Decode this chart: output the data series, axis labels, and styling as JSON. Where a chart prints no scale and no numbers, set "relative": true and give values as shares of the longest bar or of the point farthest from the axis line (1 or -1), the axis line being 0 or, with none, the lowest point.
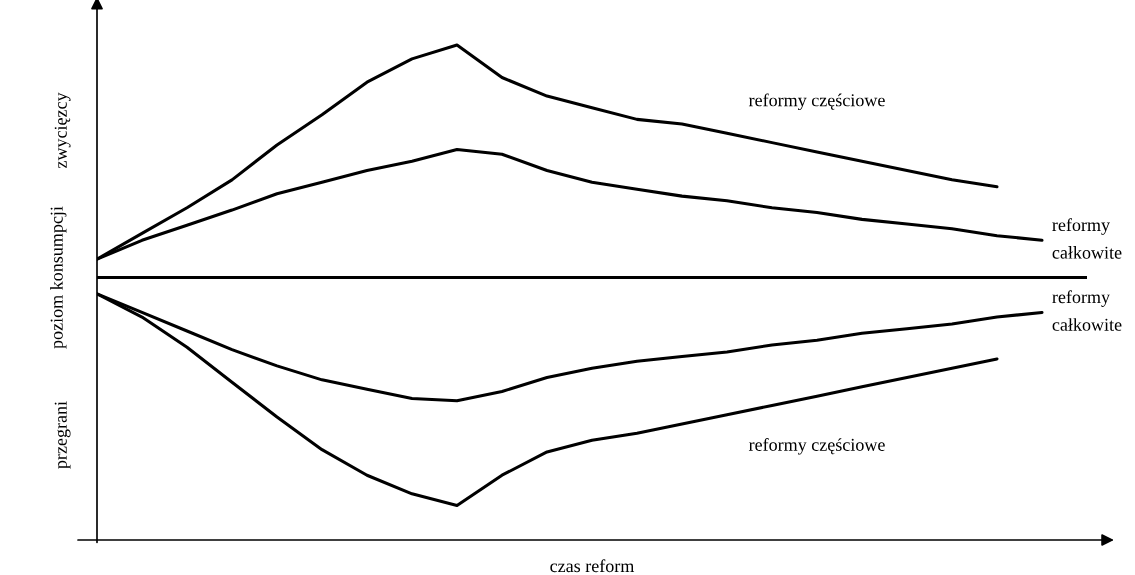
{
  "chart_data": {
    "type": "line",
    "relative": true,
    "xlabel": "czas reform",
    "ylabel": "poziom konsumpcji",
    "categories": [
      null,
      null,
      null,
      null,
      null,
      null,
      null,
      null,
      null,
      null,
      null,
      null,
      null,
      null,
      null,
      null,
      null,
      null,
      null,
      null,
      null,
      null
    ],
    "series": [
      {
        "name": "reformy częściowe",
        "color": "#000000",
        "values": [
          0.079,
          0.19,
          0.3,
          0.42,
          0.57,
          0.7,
          0.84,
          0.94,
          1.0,
          0.86,
          0.78,
          0.73,
          0.68,
          0.66,
          0.62,
          0.58,
          0.54,
          0.5,
          0.46,
          0.42,
          0.39,
          null
        ]
      },
      {
        "name": "reformy całkowite",
        "color": "#000000",
        "values": [
          0.079,
          0.16,
          0.225,
          0.29,
          0.36,
          0.41,
          0.46,
          0.5,
          0.55,
          0.53,
          0.46,
          0.41,
          0.38,
          0.35,
          0.33,
          0.3,
          0.28,
          0.25,
          0.23,
          0.21,
          0.18,
          0.16
        ]
      },
      {
        "name": "reformy całkowite",
        "color": "#000000",
        "values": [
          -0.07,
          -0.15,
          -0.23,
          -0.31,
          -0.38,
          -0.44,
          -0.48,
          -0.52,
          -0.53,
          -0.49,
          -0.43,
          -0.39,
          -0.36,
          -0.34,
          -0.32,
          -0.29,
          -0.27,
          -0.24,
          -0.22,
          -0.2,
          -0.17,
          -0.15
        ]
      },
      {
        "name": "reformy częściowe",
        "color": "#000000",
        "values": [
          -0.07,
          -0.17,
          -0.3,
          -0.45,
          -0.6,
          -0.74,
          -0.85,
          -0.93,
          -0.98,
          -0.85,
          -0.75,
          -0.7,
          -0.67,
          -0.63,
          -0.59,
          -0.55,
          -0.51,
          -0.47,
          -0.43,
          -0.39,
          -0.35,
          null
        ]
      }
    ],
    "ref_lines": [
      {
        "axis": "y",
        "value": 0,
        "color": "#000000"
      }
    ],
    "annotations": [
      "zwycięzcy",
      "przegrani"
    ]
  }
}
